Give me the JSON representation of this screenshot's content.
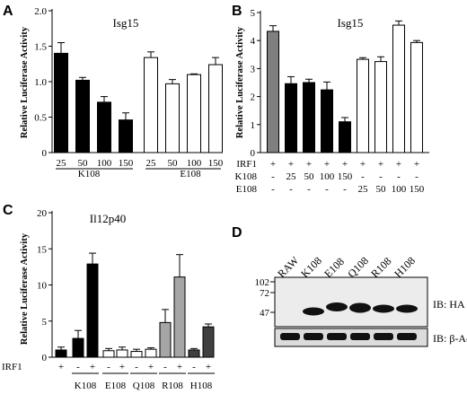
{
  "panels": {
    "A": "A",
    "B": "B",
    "C": "C",
    "D": "D"
  },
  "chart_data": [
    {
      "panel": "A",
      "type": "bar",
      "title": "Isg15",
      "ylabel": "Relative Luciferase Activity",
      "ylim": [
        0,
        2.0
      ],
      "yticks": [
        "0",
        "0.5",
        "1.0",
        "1.5",
        "2.0"
      ],
      "ytick_values": [
        0,
        0.5,
        1.0,
        1.5,
        2.0
      ],
      "categories": [
        "25",
        "50",
        "100",
        "150",
        "25",
        "50",
        "100",
        "150"
      ],
      "values": [
        1.4,
        1.02,
        0.71,
        0.46,
        1.34,
        0.97,
        1.1,
        1.24
      ],
      "errors": [
        0.15,
        0.04,
        0.08,
        0.1,
        0.08,
        0.06,
        0.01,
        0.1
      ],
      "fills": [
        "#000000",
        "#000000",
        "#000000",
        "#000000",
        "#ffffff",
        "#ffffff",
        "#ffffff",
        "#ffffff"
      ],
      "groups": [
        "K108",
        "E108"
      ]
    },
    {
      "panel": "B",
      "type": "bar",
      "title": "Isg15",
      "ylabel": "Relative Luciferase Activity",
      "ylim": [
        0,
        5
      ],
      "yticks": [
        "0",
        "1",
        "2",
        "3",
        "4",
        "5"
      ],
      "ytick_values": [
        0,
        1,
        2,
        3,
        4,
        5
      ],
      "values": [
        4.33,
        2.46,
        2.5,
        2.24,
        1.1,
        3.33,
        3.25,
        4.55,
        3.93
      ],
      "errors": [
        0.2,
        0.25,
        0.12,
        0.28,
        0.15,
        0.06,
        0.17,
        0.15,
        0.07
      ],
      "fills": [
        "#7f7f7f",
        "#000000",
        "#000000",
        "#000000",
        "#000000",
        "#ffffff",
        "#ffffff",
        "#ffffff",
        "#ffffff"
      ],
      "rows": [
        {
          "label": "IRF1",
          "cells": [
            "+",
            "+",
            "+",
            "+",
            "+",
            "+",
            "+",
            "+",
            "+"
          ]
        },
        {
          "label": "K108",
          "cells": [
            "-",
            "25",
            "50",
            "100",
            "150",
            "-",
            "-",
            "-",
            "-"
          ]
        },
        {
          "label": "E108",
          "cells": [
            "-",
            "-",
            "-",
            "-",
            "-",
            "25",
            "50",
            "100",
            "150"
          ]
        }
      ]
    },
    {
      "panel": "C",
      "type": "bar",
      "title": "Il12p40",
      "ylabel": "Relative Luciferase Activity",
      "ylim": [
        0,
        20
      ],
      "yticks": [
        "0",
        "5",
        "10",
        "15",
        "20"
      ],
      "ytick_values": [
        0,
        5,
        10,
        15,
        20
      ],
      "values": [
        1.0,
        2.6,
        12.9,
        0.9,
        1.0,
        0.8,
        1.1,
        4.8,
        11.1,
        1.0,
        4.2
      ],
      "errors": [
        0.4,
        1.1,
        1.5,
        0.3,
        0.4,
        0.3,
        0.2,
        1.8,
        3.1,
        0.2,
        0.4
      ],
      "fills": [
        "#000000",
        "#000000",
        "#000000",
        "#ffffff",
        "#ffffff",
        "#ffffff",
        "#ffffff",
        "#a6a6a6",
        "#a6a6a6",
        "#404040",
        "#404040"
      ],
      "irf1_label": "IRF1",
      "irf1_signs": [
        "+",
        "-",
        "+",
        "-",
        "+",
        "-",
        "+",
        "-",
        "+",
        "-",
        "+"
      ],
      "groups": [
        "K108",
        "E108",
        "Q108",
        "R108",
        "H108"
      ]
    }
  ],
  "blot": {
    "lanes": [
      "RAW",
      "K108",
      "E108",
      "Q108",
      "R108",
      "H108"
    ],
    "markers": [
      "102",
      "72",
      "47"
    ],
    "labels": [
      "IB: HA",
      "IB: β-Actin"
    ]
  }
}
